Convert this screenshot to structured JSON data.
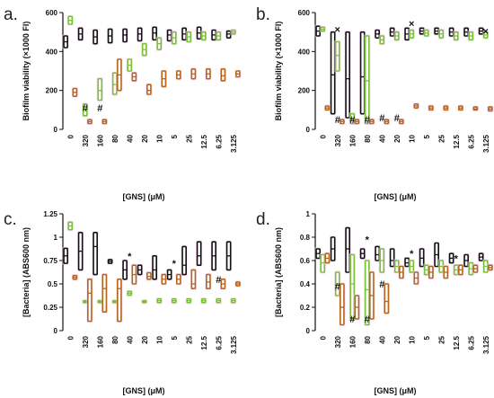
{
  "chart_data": [
    {
      "panel": "a.",
      "type": "boxplot",
      "ylabel": "Biofilm viability (×1000 FI)",
      "xlabel": "[GNS] (μM)",
      "ylim": [
        0,
        600
      ],
      "yticks": [
        0,
        200,
        400,
        600
      ],
      "categories": [
        "0",
        "320",
        "160",
        "80",
        "40",
        "20",
        "10",
        "5",
        "25",
        "12.5",
        "6.25",
        "3.125"
      ],
      "series": [
        {
          "color": "#111111",
          "values": [
            [
              420,
              450,
              480
            ],
            [
              460,
              490,
              520
            ],
            [
              440,
              475,
              510
            ],
            [
              445,
              480,
              515
            ],
            [
              450,
              485,
              515
            ],
            [
              455,
              490,
              520
            ],
            [
              460,
              495,
              525
            ],
            [
              455,
              485,
              510
            ],
            [
              460,
              490,
              520
            ],
            [
              465,
              495,
              525
            ],
            [
              460,
              485,
              510
            ],
            [
              470,
              490,
              505
            ]
          ]
        },
        {
          "color": "#7cbf3a",
          "values": [
            [
              540,
              560,
              580
            ],
            [
              70,
              100,
              130
            ],
            [
              150,
              200,
              260
            ],
            [
              180,
              230,
              290
            ],
            [
              300,
              330,
              360
            ],
            [
              380,
              410,
              440
            ],
            [
              410,
              440,
              470
            ],
            [
              440,
              470,
              500
            ],
            [
              450,
              475,
              500
            ],
            [
              460,
              480,
              500
            ],
            [
              460,
              480,
              500
            ],
            [
              490,
              500,
              510
            ]
          ]
        },
        {
          "color": "#b5651d",
          "values": [
            [
              170,
              190,
              210
            ],
            [
              30,
              40,
              50
            ],
            [
              30,
              40,
              50
            ],
            [
              200,
              280,
              360
            ],
            [
              250,
              270,
              290
            ],
            [
              180,
              200,
              230
            ],
            [
              220,
              260,
              300
            ],
            [
              260,
              280,
              300
            ],
            [
              260,
              285,
              310
            ],
            [
              260,
              285,
              310
            ],
            [
              250,
              275,
              310
            ],
            [
              270,
              285,
              300
            ]
          ]
        }
      ],
      "annotations": [
        {
          "cat": "320",
          "text": "#",
          "y": 110
        },
        {
          "cat": "160",
          "text": "#",
          "y": 110
        }
      ]
    },
    {
      "panel": "b.",
      "type": "boxplot",
      "ylabel": "Biofilm viability (×1000 FI)",
      "xlabel": "[GNS] (μM)",
      "ylim": [
        0,
        600
      ],
      "yticks": [
        0,
        200,
        400,
        600
      ],
      "categories": [
        "0",
        "320",
        "160",
        "80",
        "40",
        "20",
        "10",
        "5",
        "25",
        "12.5",
        "6.25",
        "3.125"
      ],
      "series": [
        {
          "color": "#111111",
          "values": [
            [
              480,
              505,
              530
            ],
            [
              80,
              280,
              500
            ],
            [
              60,
              260,
              500
            ],
            [
              80,
              270,
              500
            ],
            [
              470,
              490,
              510
            ],
            [
              480,
              500,
              520
            ],
            [
              460,
              490,
              520
            ],
            [
              490,
              505,
              520
            ],
            [
              490,
              505,
              520
            ],
            [
              480,
              500,
              520
            ],
            [
              480,
              500,
              520
            ],
            [
              490,
              505,
              520
            ]
          ]
        },
        {
          "color": "#7cbf3a",
          "values": [
            [
              505,
              515,
              525
            ],
            [
              300,
              380,
              450
            ],
            [
              30,
              50,
              80
            ],
            [
              30,
              250,
              480
            ],
            [
              440,
              460,
              480
            ],
            [
              460,
              480,
              500
            ],
            [
              470,
              490,
              510
            ],
            [
              480,
              495,
              510
            ],
            [
              470,
              490,
              510
            ],
            [
              460,
              480,
              500
            ],
            [
              460,
              480,
              500
            ],
            [
              470,
              485,
              500
            ]
          ]
        },
        {
          "color": "#b5651d",
          "values": [
            [
              100,
              110,
              120
            ],
            [
              30,
              40,
              50
            ],
            [
              30,
              40,
              50
            ],
            [
              30,
              40,
              50
            ],
            [
              30,
              40,
              50
            ],
            [
              30,
              40,
              50
            ],
            [
              110,
              120,
              130
            ],
            [
              100,
              110,
              120
            ],
            [
              100,
              110,
              120
            ],
            [
              100,
              110,
              120
            ],
            [
              100,
              105,
              115
            ],
            [
              95,
              105,
              115
            ]
          ]
        }
      ],
      "annotations": [
        {
          "cat": "320",
          "text": "#",
          "y": 50
        },
        {
          "cat": "160",
          "text": "#",
          "y": 50
        },
        {
          "cat": "80",
          "text": "#",
          "y": 50
        },
        {
          "cat": "40",
          "text": "#",
          "y": 60
        },
        {
          "cat": "20",
          "text": "#",
          "y": 60
        },
        {
          "cat": "10",
          "text": "×",
          "y": 545
        },
        {
          "cat": "3.125",
          "text": "×",
          "y": 505
        },
        {
          "cat": "320",
          "text": "×",
          "y": 515
        }
      ]
    },
    {
      "panel": "c.",
      "type": "boxplot",
      "ylabel": "[Bacteria] (ABS600 nm)",
      "xlabel": "[GNS] (μM)",
      "ylim": [
        0,
        1.25
      ],
      "yticks": [
        0,
        0.25,
        0.5,
        0.75,
        1.0,
        1.25
      ],
      "categories": [
        "0",
        "320",
        "160",
        "80",
        "40",
        "20",
        "10",
        "5",
        "25",
        "12.5",
        "6.25",
        "3.125"
      ],
      "series": [
        {
          "color": "#111111",
          "values": [
            [
              0.72,
              0.8,
              0.88
            ],
            [
              0.65,
              0.85,
              1.05
            ],
            [
              0.6,
              0.9,
              1.05
            ],
            [
              0.72,
              0.74,
              0.76
            ],
            [
              0.55,
              0.65,
              0.75
            ],
            [
              0.6,
              0.65,
              0.7
            ],
            [
              0.55,
              0.65,
              0.8
            ],
            [
              0.55,
              0.6,
              0.65
            ],
            [
              0.6,
              0.7,
              0.9
            ],
            [
              0.7,
              0.8,
              0.95
            ],
            [
              0.65,
              0.8,
              0.95
            ],
            [
              0.65,
              0.8,
              0.95
            ]
          ]
        },
        {
          "color": "#7cbf3a",
          "values": [
            [
              1.08,
              1.12,
              1.16
            ],
            [
              0.3,
              0.31,
              0.32
            ],
            [
              0.3,
              0.31,
              0.32
            ],
            [
              0.3,
              0.31,
              0.32
            ],
            [
              0.38,
              0.4,
              0.42
            ],
            [
              0.3,
              0.31,
              0.32
            ],
            [
              0.3,
              0.32,
              0.34
            ],
            [
              0.3,
              0.32,
              0.34
            ],
            [
              0.3,
              0.32,
              0.34
            ],
            [
              0.3,
              0.32,
              0.34
            ],
            [
              0.3,
              0.32,
              0.34
            ],
            [
              0.3,
              0.32,
              0.34
            ]
          ]
        },
        {
          "color": "#b5651d",
          "values": [
            [
              0.55,
              0.57,
              0.59
            ],
            [
              0.1,
              0.4,
              0.55
            ],
            [
              0.2,
              0.45,
              0.6
            ],
            [
              0.1,
              0.45,
              0.55
            ],
            [
              0.5,
              0.6,
              0.7
            ],
            [
              0.55,
              0.58,
              0.62
            ],
            [
              0.5,
              0.55,
              0.6
            ],
            [
              0.5,
              0.55,
              0.6
            ],
            [
              0.45,
              0.5,
              0.65
            ],
            [
              0.45,
              0.52,
              0.6
            ],
            [
              0.45,
              0.5,
              0.55
            ],
            [
              0.48,
              0.5,
              0.52
            ]
          ]
        }
      ],
      "annotations": [
        {
          "cat": "40",
          "text": "*",
          "y": 0.8
        },
        {
          "cat": "5",
          "text": "*",
          "y": 0.72
        },
        {
          "cat": "6.25",
          "text": "#",
          "y": 0.55
        }
      ]
    },
    {
      "panel": "d.",
      "type": "boxplot",
      "ylabel": "[Bacteria] (ABS600 nm)",
      "xlabel": "[GNS] (μM)",
      "ylim": [
        0,
        1.0
      ],
      "yticks": [
        0,
        0.2,
        0.4,
        0.6,
        0.8,
        1.0
      ],
      "categories": [
        "0",
        "320",
        "160",
        "80",
        "40",
        "20",
        "10",
        "5",
        "25",
        "12.5",
        "6.25",
        "3.125"
      ],
      "series": [
        {
          "color": "#111111",
          "values": [
            [
              0.62,
              0.66,
              0.7
            ],
            [
              0.6,
              0.7,
              0.8
            ],
            [
              0.5,
              0.7,
              0.88
            ],
            [
              0.62,
              0.66,
              0.7
            ],
            [
              0.6,
              0.65,
              0.72
            ],
            [
              0.55,
              0.6,
              0.7
            ],
            [
              0.55,
              0.58,
              0.62
            ],
            [
              0.55,
              0.62,
              0.7
            ],
            [
              0.55,
              0.65,
              0.75
            ],
            [
              0.58,
              0.62,
              0.66
            ],
            [
              0.55,
              0.6,
              0.65
            ],
            [
              0.6,
              0.63,
              0.66
            ]
          ]
        },
        {
          "color": "#7cbf3a",
          "values": [
            [
              0.5,
              0.58,
              0.65
            ],
            [
              0.3,
              0.4,
              0.5
            ],
            [
              0.1,
              0.4,
              0.65
            ],
            [
              0.05,
              0.35,
              0.6
            ],
            [
              0.5,
              0.6,
              0.7
            ],
            [
              0.5,
              0.55,
              0.6
            ],
            [
              0.5,
              0.55,
              0.6
            ],
            [
              0.48,
              0.52,
              0.56
            ],
            [
              0.5,
              0.55,
              0.6
            ],
            [
              0.48,
              0.52,
              0.56
            ],
            [
              0.48,
              0.53,
              0.58
            ],
            [
              0.5,
              0.55,
              0.6
            ]
          ]
        },
        {
          "color": "#b5651d",
          "values": [
            [
              0.58,
              0.62,
              0.66
            ],
            [
              0.05,
              0.2,
              0.4
            ],
            [
              0.1,
              0.2,
              0.3
            ],
            [
              0.1,
              0.3,
              0.5
            ],
            [
              0.15,
              0.25,
              0.4
            ],
            [
              0.45,
              0.5,
              0.55
            ],
            [
              0.4,
              0.45,
              0.5
            ],
            [
              0.45,
              0.5,
              0.55
            ],
            [
              0.45,
              0.5,
              0.55
            ],
            [
              0.48,
              0.52,
              0.56
            ],
            [
              0.5,
              0.53,
              0.56
            ],
            [
              0.52,
              0.54,
              0.56
            ]
          ]
        }
      ],
      "annotations": [
        {
          "cat": "320",
          "text": "#",
          "y": 0.38
        },
        {
          "cat": "160",
          "text": "#",
          "y": 0.1
        },
        {
          "cat": "80",
          "text": "*",
          "y": 0.78
        },
        {
          "cat": "80",
          "text": "#",
          "y": 0.1
        },
        {
          "cat": "40",
          "text": "#",
          "y": 0.4
        },
        {
          "cat": "10",
          "text": "*",
          "y": 0.66
        },
        {
          "cat": "12.5",
          "text": "*",
          "y": 0.62
        }
      ]
    }
  ]
}
